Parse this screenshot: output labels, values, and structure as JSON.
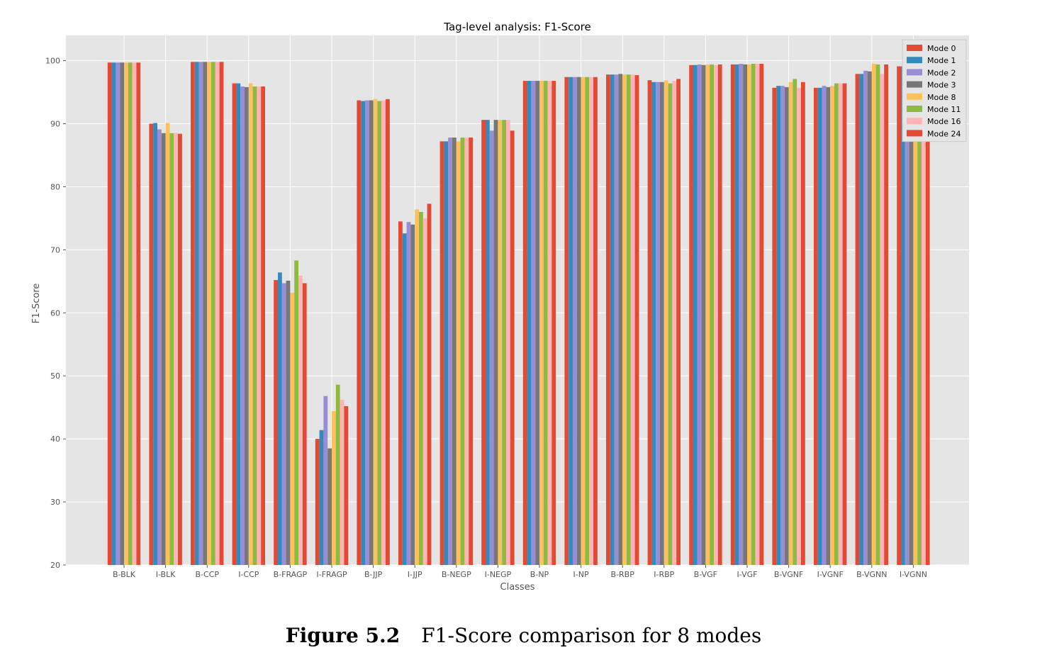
{
  "chart_data": {
    "type": "bar",
    "title": "Tag-level analysis: F1-Score",
    "xlabel": "Classes",
    "ylabel": "F1-Score",
    "ylim": [
      20,
      104
    ],
    "yticks": [
      20,
      30,
      40,
      50,
      60,
      70,
      80,
      90,
      100
    ],
    "grid": true,
    "legend_position": "top-right",
    "categories": [
      "B-BLK",
      "I-BLK",
      "B-CCP",
      "I-CCP",
      "B-FRAGP",
      "I-FRAGP",
      "B-JJP",
      "I-JJP",
      "B-NEGP",
      "I-NEGP",
      "B-NP",
      "I-NP",
      "B-RBP",
      "I-RBP",
      "B-VGF",
      "I-VGF",
      "B-VGNF",
      "I-VGNF",
      "B-VGNN",
      "I-VGNN"
    ],
    "series": [
      {
        "name": "Mode 0",
        "color": "#e24a33",
        "values": [
          99.7,
          90.0,
          99.8,
          96.4,
          65.2,
          40.0,
          93.7,
          74.5,
          87.2,
          90.6,
          96.8,
          97.4,
          97.8,
          96.9,
          99.3,
          99.4,
          95.7,
          95.7,
          97.9,
          99.1
        ]
      },
      {
        "name": "Mode 1",
        "color": "#348abd",
        "values": [
          99.7,
          90.1,
          99.8,
          96.4,
          66.4,
          41.4,
          93.6,
          72.6,
          87.2,
          90.6,
          96.8,
          97.4,
          97.8,
          96.6,
          99.3,
          99.4,
          96.0,
          95.7,
          97.9,
          99.1
        ]
      },
      {
        "name": "Mode 2",
        "color": "#988ed5",
        "values": [
          99.7,
          89.1,
          99.8,
          95.9,
          64.7,
          46.8,
          93.7,
          74.4,
          87.8,
          88.9,
          96.8,
          97.4,
          97.8,
          96.6,
          99.4,
          99.5,
          96.0,
          96.0,
          98.4,
          99.1
        ]
      },
      {
        "name": "Mode 3",
        "color": "#777777",
        "values": [
          99.7,
          88.5,
          99.8,
          95.8,
          65.1,
          38.5,
          93.7,
          74.0,
          87.8,
          90.6,
          96.8,
          97.4,
          97.9,
          96.6,
          99.3,
          99.4,
          95.8,
          95.8,
          98.3,
          99.1
        ]
      },
      {
        "name": "Mode 8",
        "color": "#fbc15e",
        "values": [
          99.7,
          90.1,
          99.8,
          96.4,
          63.2,
          44.4,
          93.9,
          76.4,
          87.2,
          90.6,
          96.8,
          97.4,
          97.8,
          96.9,
          99.4,
          99.4,
          96.6,
          96.0,
          99.5,
          99.1
        ]
      },
      {
        "name": "Mode 11",
        "color": "#8eba42",
        "values": [
          99.7,
          88.5,
          99.8,
          95.9,
          68.3,
          48.6,
          93.6,
          76.0,
          87.8,
          90.6,
          96.8,
          97.4,
          97.8,
          96.4,
          99.4,
          99.5,
          97.1,
          96.4,
          99.4,
          99.1
        ]
      },
      {
        "name": "Mode 16",
        "color": "#ffb5b8",
        "values": [
          99.7,
          88.5,
          99.8,
          95.9,
          65.9,
          46.2,
          93.7,
          75.0,
          87.8,
          90.6,
          96.8,
          97.4,
          97.8,
          96.8,
          99.3,
          99.5,
          95.7,
          96.4,
          97.9,
          99.1
        ]
      },
      {
        "name": "Mode 24",
        "color": "#e24a33",
        "values": [
          99.7,
          88.4,
          99.8,
          95.9,
          64.7,
          45.2,
          93.9,
          77.3,
          87.8,
          88.9,
          96.8,
          97.4,
          97.7,
          97.1,
          99.4,
          99.5,
          96.6,
          96.4,
          99.4,
          99.1
        ]
      }
    ]
  },
  "caption": {
    "figure_number": "Figure 5.2",
    "text": "F1-Score comparison for 8 modes"
  }
}
